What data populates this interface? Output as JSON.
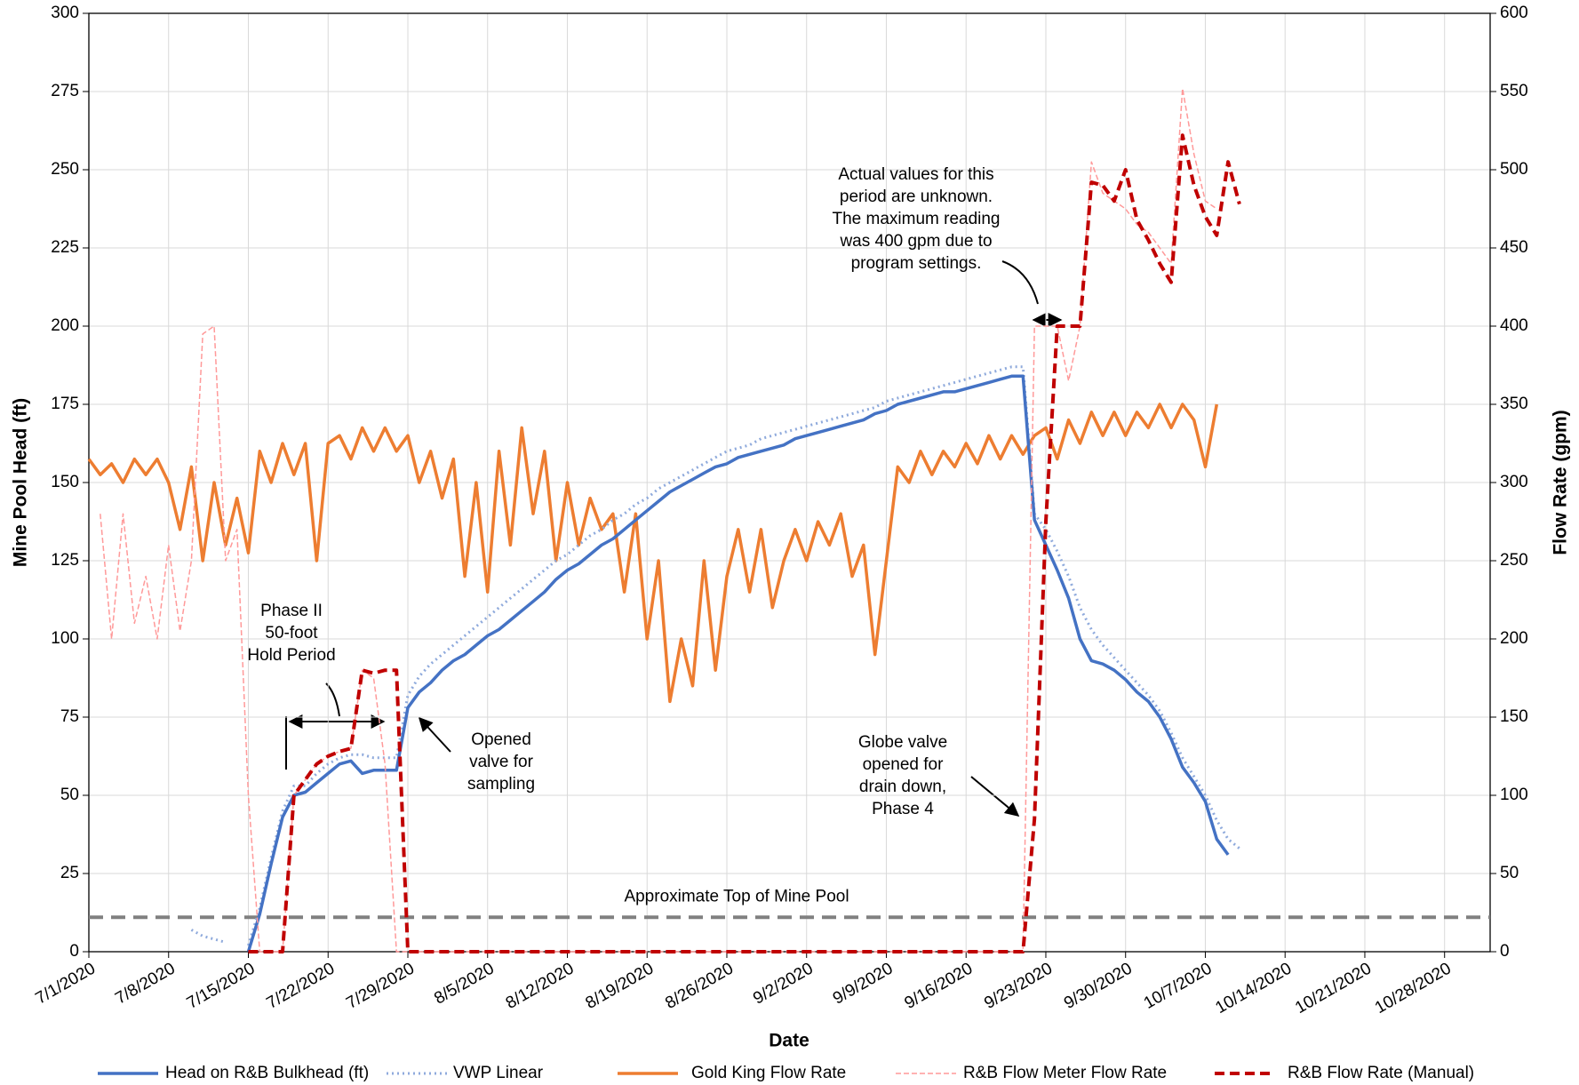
{
  "chart_data": {
    "type": "line",
    "x_label": "Date",
    "y_label": "Mine Pool Head (ft)",
    "y2_label": "Flow Rate (gpm)",
    "xlim": [
      "2020-07-01",
      "2020-11-01"
    ],
    "xticks": [
      {
        "value": "2020-07-01",
        "label": "7/1/2020"
      },
      {
        "value": "2020-07-08",
        "label": "7/8/2020"
      },
      {
        "value": "2020-07-15",
        "label": "7/15/2020"
      },
      {
        "value": "2020-07-22",
        "label": "7/22/2020"
      },
      {
        "value": "2020-07-29",
        "label": "7/29/2020"
      },
      {
        "value": "2020-08-05",
        "label": "8/5/2020"
      },
      {
        "value": "2020-08-12",
        "label": "8/12/2020"
      },
      {
        "value": "2020-08-19",
        "label": "8/19/2020"
      },
      {
        "value": "2020-08-26",
        "label": "8/26/2020"
      },
      {
        "value": "2020-09-02",
        "label": "9/2/2020"
      },
      {
        "value": "2020-09-09",
        "label": "9/9/2020"
      },
      {
        "value": "2020-09-16",
        "label": "9/16/2020"
      },
      {
        "value": "2020-09-23",
        "label": "9/23/2020"
      },
      {
        "value": "2020-09-30",
        "label": "9/30/2020"
      },
      {
        "value": "2020-10-07",
        "label": "10/7/2020"
      },
      {
        "value": "2020-10-14",
        "label": "10/14/2020"
      },
      {
        "value": "2020-10-21",
        "label": "10/21/2020"
      },
      {
        "value": "2020-10-28",
        "label": "10/28/2020"
      }
    ],
    "ylim": [
      0,
      300
    ],
    "yticks": [
      0,
      25,
      50,
      75,
      100,
      125,
      150,
      175,
      200,
      225,
      250,
      275,
      300
    ],
    "y2lim": [
      0,
      600
    ],
    "y2ticks": [
      0,
      50,
      100,
      150,
      200,
      250,
      300,
      350,
      400,
      450,
      500,
      550,
      600
    ],
    "grid": true,
    "legend": "bottom",
    "x": [
      "2020-07-01",
      "2020-07-02",
      "2020-07-03",
      "2020-07-04",
      "2020-07-05",
      "2020-07-06",
      "2020-07-07",
      "2020-07-08",
      "2020-07-09",
      "2020-07-10",
      "2020-07-11",
      "2020-07-12",
      "2020-07-13",
      "2020-07-14",
      "2020-07-15",
      "2020-07-16",
      "2020-07-17",
      "2020-07-18",
      "2020-07-19",
      "2020-07-20",
      "2020-07-21",
      "2020-07-22",
      "2020-07-23",
      "2020-07-24",
      "2020-07-25",
      "2020-07-26",
      "2020-07-27",
      "2020-07-28",
      "2020-07-29",
      "2020-07-30",
      "2020-07-31",
      "2020-08-01",
      "2020-08-02",
      "2020-08-03",
      "2020-08-04",
      "2020-08-05",
      "2020-08-06",
      "2020-08-07",
      "2020-08-08",
      "2020-08-09",
      "2020-08-10",
      "2020-08-11",
      "2020-08-12",
      "2020-08-13",
      "2020-08-14",
      "2020-08-15",
      "2020-08-16",
      "2020-08-17",
      "2020-08-18",
      "2020-08-19",
      "2020-08-20",
      "2020-08-21",
      "2020-08-22",
      "2020-08-23",
      "2020-08-24",
      "2020-08-25",
      "2020-08-26",
      "2020-08-27",
      "2020-08-28",
      "2020-08-29",
      "2020-08-30",
      "2020-08-31",
      "2020-09-01",
      "2020-09-02",
      "2020-09-03",
      "2020-09-04",
      "2020-09-05",
      "2020-09-06",
      "2020-09-07",
      "2020-09-08",
      "2020-09-09",
      "2020-09-10",
      "2020-09-11",
      "2020-09-12",
      "2020-09-13",
      "2020-09-14",
      "2020-09-15",
      "2020-09-16",
      "2020-09-17",
      "2020-09-18",
      "2020-09-19",
      "2020-09-20",
      "2020-09-21",
      "2020-09-22",
      "2020-09-23",
      "2020-09-24",
      "2020-09-25",
      "2020-09-26",
      "2020-09-27",
      "2020-09-28",
      "2020-09-29",
      "2020-09-30",
      "2020-10-01",
      "2020-10-02",
      "2020-10-03",
      "2020-10-04",
      "2020-10-05",
      "2020-10-06",
      "2020-10-07",
      "2020-10-08",
      "2020-10-09",
      "2020-10-10"
    ],
    "series": [
      {
        "name": "Head on R&B Bulkhead (ft)",
        "color": "#4472c4",
        "line_style": "solid",
        "axis": "y",
        "values": [
          null,
          null,
          null,
          null,
          null,
          null,
          null,
          null,
          null,
          null,
          null,
          null,
          null,
          null,
          0,
          12,
          28,
          43,
          50,
          51,
          54,
          57,
          60,
          61,
          57,
          58,
          58,
          58,
          78,
          83,
          86,
          90,
          93,
          95,
          98,
          101,
          103,
          106,
          109,
          112,
          115,
          119,
          122,
          124,
          127,
          130,
          132,
          135,
          138,
          141,
          144,
          147,
          149,
          151,
          153,
          155,
          156,
          158,
          159,
          160,
          161,
          162,
          164,
          165,
          166,
          167,
          168,
          169,
          170,
          172,
          173,
          175,
          176,
          177,
          178,
          179,
          179,
          180,
          181,
          182,
          183,
          184,
          184,
          138,
          130,
          122,
          113,
          100,
          93,
          92,
          90,
          87,
          83,
          80,
          75,
          68,
          59,
          54,
          48,
          36,
          31,
          null
        ]
      },
      {
        "name": "VWP Linear",
        "color": "#8faadc",
        "line_style": "dotted",
        "axis": "y",
        "values": [
          null,
          null,
          null,
          null,
          null,
          null,
          null,
          null,
          null,
          7,
          5,
          4,
          3,
          null,
          2,
          14,
          30,
          45,
          53,
          53,
          57,
          60,
          62,
          63,
          63,
          62,
          62,
          62,
          82,
          88,
          92,
          95,
          98,
          101,
          104,
          107,
          110,
          113,
          116,
          119,
          122,
          125,
          127,
          130,
          133,
          135,
          138,
          140,
          143,
          145,
          148,
          150,
          152,
          154,
          156,
          158,
          160,
          161,
          162,
          164,
          165,
          166,
          167,
          168,
          169,
          170,
          171,
          172,
          173,
          174,
          176,
          177,
          178,
          179,
          180,
          181,
          182,
          183,
          184,
          185,
          186,
          187,
          187,
          140,
          135,
          128,
          120,
          110,
          103,
          98,
          94,
          90,
          86,
          82,
          77,
          70,
          62,
          56,
          50,
          42,
          36,
          33
        ]
      },
      {
        "name": "Gold King Flow Rate",
        "color": "#ed7d31",
        "line_style": "solid",
        "axis": "y2",
        "values": [
          315,
          305,
          312,
          300,
          315,
          305,
          315,
          300,
          270,
          310,
          250,
          300,
          260,
          290,
          255,
          320,
          300,
          325,
          305,
          325,
          250,
          325,
          330,
          315,
          335,
          320,
          335,
          320,
          330,
          300,
          320,
          290,
          315,
          240,
          300,
          230,
          320,
          260,
          335,
          280,
          320,
          250,
          300,
          260,
          290,
          270,
          280,
          230,
          280,
          200,
          250,
          160,
          200,
          170,
          250,
          180,
          240,
          270,
          230,
          270,
          220,
          250,
          270,
          250,
          275,
          260,
          280,
          240,
          260,
          190,
          250,
          310,
          300,
          320,
          305,
          320,
          310,
          325,
          312,
          330,
          315,
          330,
          318,
          330,
          335,
          315,
          340,
          325,
          345,
          330,
          345,
          330,
          345,
          335,
          350,
          335,
          350,
          340,
          310,
          350,
          null,
          null
        ]
      },
      {
        "name": "R&B Flow Meter Flow Rate",
        "color": "#ff9999",
        "line_style": "thin-dashed",
        "axis": "y2",
        "values": [
          null,
          280,
          200,
          280,
          210,
          240,
          200,
          260,
          205,
          250,
          395,
          400,
          250,
          270,
          100,
          0,
          0,
          0,
          100,
          110,
          120,
          125,
          128,
          130,
          180,
          175,
          120,
          0,
          0,
          0,
          0,
          0,
          0,
          0,
          0,
          0,
          0,
          0,
          0,
          0,
          0,
          0,
          0,
          0,
          0,
          0,
          0,
          0,
          0,
          0,
          0,
          0,
          0,
          0,
          0,
          0,
          0,
          0,
          0,
          0,
          0,
          0,
          0,
          0,
          0,
          0,
          0,
          0,
          0,
          0,
          0,
          0,
          0,
          0,
          0,
          0,
          0,
          0,
          0,
          0,
          0,
          0,
          0,
          400,
          400,
          400,
          365,
          400,
          505,
          485,
          480,
          475,
          465,
          460,
          450,
          440,
          552,
          510,
          480,
          475,
          null,
          null
        ]
      },
      {
        "name": "R&B Flow Rate (Manual)",
        "color": "#c00000",
        "line_style": "dashed",
        "axis": "y2",
        "values": [
          null,
          null,
          null,
          null,
          null,
          null,
          null,
          null,
          null,
          null,
          null,
          null,
          null,
          null,
          0,
          0,
          0,
          0,
          100,
          110,
          120,
          125,
          128,
          130,
          180,
          178,
          180,
          180,
          0,
          0,
          0,
          0,
          0,
          0,
          0,
          0,
          0,
          0,
          0,
          0,
          0,
          0,
          0,
          0,
          0,
          0,
          0,
          0,
          0,
          0,
          0,
          0,
          0,
          0,
          0,
          0,
          0,
          0,
          0,
          0,
          0,
          0,
          0,
          0,
          0,
          0,
          0,
          0,
          0,
          0,
          0,
          0,
          0,
          0,
          0,
          0,
          0,
          0,
          0,
          0,
          0,
          0,
          0,
          85,
          275,
          400,
          400,
          400,
          492,
          490,
          480,
          500,
          468,
          455,
          440,
          428,
          522,
          490,
          470,
          458,
          505,
          478
        ]
      }
    ],
    "reference_line": {
      "value": 11,
      "label": "Approximate Top of Mine Pool",
      "color": "#808080"
    },
    "annotations": [
      {
        "lines": [
          "Phase II",
          "50-foot",
          "Hold Period"
        ]
      },
      {
        "lines": [
          "Opened",
          "valve for",
          "sampling"
        ]
      },
      {
        "lines": [
          "Actual values for this",
          "period are unknown.",
          "The maximum reading",
          "was 400 gpm due to",
          "program settings."
        ]
      },
      {
        "lines": [
          "Globe valve",
          "opened for",
          "drain down,",
          "Phase 4"
        ]
      }
    ]
  }
}
